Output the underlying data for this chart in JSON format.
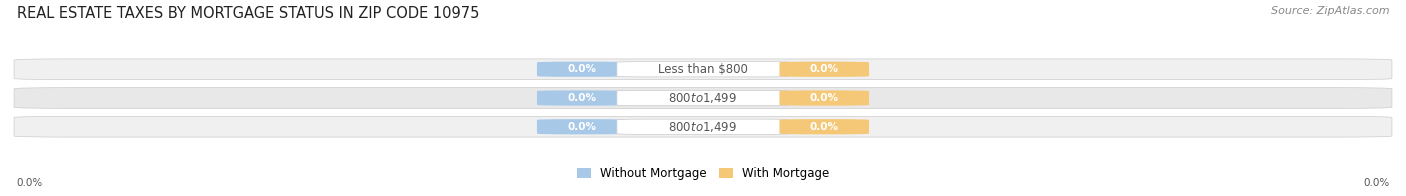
{
  "title": "REAL ESTATE TAXES BY MORTGAGE STATUS IN ZIP CODE 10975",
  "source": "Source: ZipAtlas.com",
  "categories": [
    "Less than $800",
    "$800 to $1,499",
    "$800 to $1,499"
  ],
  "without_mortgage": [
    0.0,
    0.0,
    0.0
  ],
  "with_mortgage": [
    0.0,
    0.0,
    0.0
  ],
  "without_mortgage_color": "#a8c8e8",
  "with_mortgage_color": "#f5c878",
  "bar_bg_color": "#e8e8e8",
  "row_bg_color": "#efefef",
  "label_text_without": "Without Mortgage",
  "label_text_with": "With Mortgage",
  "x_left_label": "0.0%",
  "x_right_label": "0.0%",
  "title_fontsize": 10.5,
  "source_fontsize": 8,
  "category_fontsize": 8.5,
  "value_fontsize": 7.5,
  "legend_fontsize": 8.5,
  "background_color": "#ffffff"
}
